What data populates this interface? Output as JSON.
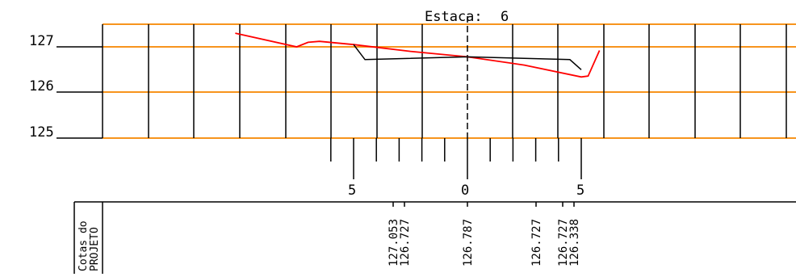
{
  "title": {
    "label": "Estaca:",
    "value": "6"
  },
  "levels": [
    "127",
    "126",
    "125"
  ],
  "offset_labels": [
    "5",
    "0",
    "5"
  ],
  "table_header": [
    "Cotas do",
    "PROJETO"
  ],
  "cotas": [
    "127.053",
    "126.727",
    "126.787",
    "126.727",
    "126.727",
    "126.338"
  ],
  "colors": {
    "grid_orange": "#f7941d",
    "terrain_red": "#ff0000",
    "project_black": "#000000"
  },
  "chart_data": {
    "type": "line",
    "title": "Estaca: 6",
    "xlabel": "",
    "ylabel": "",
    "ylim": [
      125,
      127.5
    ],
    "x_ticks": [
      "5",
      "0",
      "5"
    ],
    "series": [
      {
        "values": [
          [
            -10.2,
            127.3
          ],
          [
            -7.5,
            127.0
          ],
          [
            -7.0,
            127.1
          ],
          [
            -6.5,
            127.12
          ],
          [
            -5.0,
            127.05
          ],
          [
            -2.5,
            126.9
          ],
          [
            0,
            126.78
          ],
          [
            2.5,
            126.6
          ],
          [
            5.0,
            126.34
          ],
          [
            5.3,
            126.36
          ],
          [
            5.8,
            126.92
          ]
        ]
      },
      {
        "values": [
          [
            -5.0,
            127.05
          ],
          [
            -4.5,
            126.72
          ],
          [
            0,
            126.78
          ],
          [
            4.5,
            126.72
          ],
          [
            5.0,
            126.5
          ]
        ]
      }
    ],
    "grid": true
  }
}
